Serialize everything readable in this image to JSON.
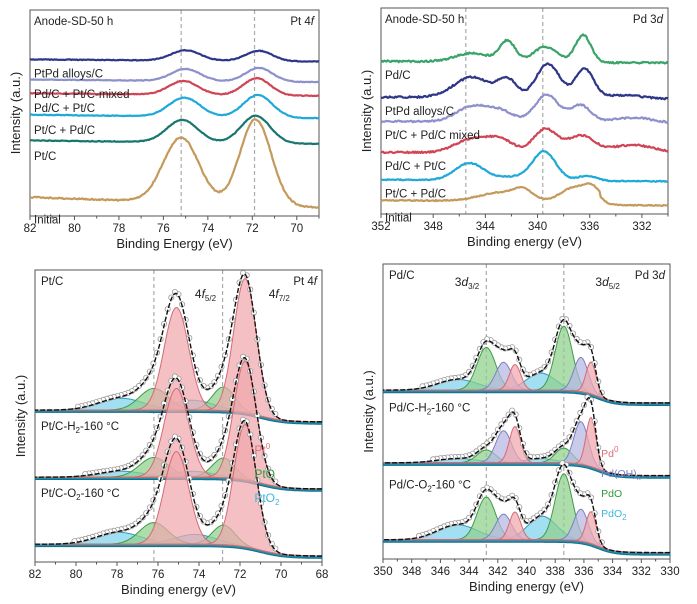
{
  "chart_data": [
    {
      "id": "a",
      "type": "line",
      "title": "",
      "corner_left_label": "Anode-SD-50 h",
      "corner_right_label": {
        "main": "Pt 4",
        "italic": "f"
      },
      "xlabel": "Binding Energy (eV)",
      "ylabel": "Intensity (a.u.)",
      "xlim": [
        82,
        69
      ],
      "xticks": [
        82,
        80,
        78,
        76,
        74,
        72,
        70
      ],
      "ref_lines": [
        75.2,
        71.9
      ],
      "series": [
        {
          "name": "Initial",
          "color": "#c49a5c",
          "peaks": [
            [
              75.2,
              0.38,
              0.8
            ],
            [
              71.85,
              0.5,
              0.7
            ]
          ],
          "baseline": 0.0,
          "slope": 0.06,
          "noise": 0.004
        },
        {
          "name": "Pt/C",
          "color": "#17766f",
          "peaks": [
            [
              75.15,
              0.13,
              0.7
            ],
            [
              71.85,
              0.16,
              0.65
            ]
          ],
          "baseline": 0.37,
          "slope": 0.02,
          "noise": 0.002
        },
        {
          "name": "Pt/C + Pd/C",
          "color": "#1ea9d8",
          "peaks": [
            [
              75.05,
              0.11,
              0.7
            ],
            [
              71.75,
              0.13,
              0.65
            ]
          ],
          "baseline": 0.52,
          "slope": 0.02,
          "noise": 0.002
        },
        {
          "name": "Pd/C + Pt/C",
          "color": "#cf4556",
          "peaks": [
            [
              75.1,
              0.08,
              0.65
            ],
            [
              71.8,
              0.1,
              0.6
            ]
          ],
          "baseline": 0.65,
          "slope": 0.015,
          "noise": 0.002
        },
        {
          "name": "Pd/C + Pt/C-mixed",
          "color": "#8e90cc",
          "peaks": [
            [
              75.0,
              0.07,
              0.65
            ],
            [
              71.7,
              0.08,
              0.6
            ]
          ],
          "baseline": 0.73,
          "slope": 0.015,
          "noise": 0.002
        },
        {
          "name": "PtPd alloys/C",
          "color": "#2d3687",
          "peaks": [
            [
              75.0,
              0.06,
              0.65
            ],
            [
              71.7,
              0.06,
              0.6
            ]
          ],
          "baseline": 0.85,
          "slope": 0.012,
          "noise": 0.002
        }
      ],
      "ylim": [
        -0.05,
        1.15
      ]
    },
    {
      "id": "b",
      "type": "line",
      "corner_left_label": "Anode-SD-50 h",
      "corner_right_label": {
        "main": "Pd 3",
        "italic": "d"
      },
      "xlabel": "Binding energy (eV)",
      "ylabel": "Intensity (a.u.)",
      "xlim": [
        352,
        330
      ],
      "xticks": [
        352,
        348,
        344,
        340,
        336,
        332
      ],
      "ref_lines": [
        345.5,
        339.6
      ],
      "series": [
        {
          "name": "Initial",
          "color": "#c49a5c",
          "peaks": [
            [
              342.8,
              0.05,
              1.6
            ],
            [
              341.1,
              0.05,
              0.7
            ],
            [
              337.2,
              0.08,
              1.0
            ],
            [
              335.8,
              0.07,
              0.6
            ]
          ],
          "baseline": 0.0,
          "slope": 0.01,
          "noise": 0.003,
          "step": [
            335.2,
            0.02
          ]
        },
        {
          "name": "Pt/C + Pd/C",
          "color": "#1ea9d8",
          "peaks": [
            [
              345.2,
              0.1,
              1.1
            ],
            [
              339.5,
              0.17,
              0.9
            ],
            [
              336.2,
              0.03,
              0.7
            ],
            [
              342.0,
              0.02,
              1.0
            ]
          ],
          "baseline": 0.14,
          "slope": 0.01,
          "noise": 0.003
        },
        {
          "name": "Pd/C + Pt/C",
          "color": "#cf4556",
          "peaks": [
            [
              345.0,
              0.08,
              1.3
            ],
            [
              342.8,
              0.07,
              1.0
            ],
            [
              339.4,
              0.14,
              0.9
            ],
            [
              336.7,
              0.1,
              1.0
            ],
            [
              332.7,
              0.05,
              1.8
            ]
          ],
          "baseline": 0.3,
          "slope": 0.01,
          "noise": 0.005
        },
        {
          "name": "Pt/C + Pd/C mixed",
          "color": "#8e90cc",
          "peaks": [
            [
              345.0,
              0.09,
              1.2
            ],
            [
              342.8,
              0.06,
              1.0
            ],
            [
              339.3,
              0.16,
              0.9
            ],
            [
              336.7,
              0.1,
              0.8
            ],
            [
              332.7,
              0.03,
              1.5
            ]
          ],
          "baseline": 0.48,
          "slope": 0.01,
          "noise": 0.005
        },
        {
          "name": "PtPd alloys/C",
          "color": "#2d3687",
          "peaks": [
            [
              345.0,
              0.12,
              1.4
            ],
            [
              342.3,
              0.1,
              0.7
            ],
            [
              339.2,
              0.2,
              0.9
            ],
            [
              336.4,
              0.17,
              0.7
            ],
            [
              333.5,
              0.02,
              1.5
            ]
          ],
          "baseline": 0.62,
          "slope": 0.012,
          "noise": 0.005
        },
        {
          "name": "Pd/C",
          "color": "#3aa36a",
          "peaks": [
            [
              345.0,
              0.05,
              1.3
            ],
            [
              342.3,
              0.12,
              0.6
            ],
            [
              339.4,
              0.09,
              0.9
            ],
            [
              336.5,
              0.16,
              0.6
            ]
          ],
          "baseline": 0.83,
          "slope": 0.01,
          "noise": 0.005
        }
      ],
      "ylim": [
        -0.05,
        1.15
      ]
    },
    {
      "id": "c",
      "type": "area",
      "corner_left_labels": [
        "Pt/C",
        "Pt/C-H2-160 °C",
        "Pt/C-O2-160 °C"
      ],
      "corner_right_label": {
        "main": "Pt 4",
        "italic": "f"
      },
      "peak_labels": [
        {
          "base": "4f",
          "sub": "5/2"
        },
        {
          "base": "4f",
          "sub": "7/2"
        }
      ],
      "xlabel": "Binding energy (eV)",
      "ylabel": "Intensity (a.u.)",
      "xlim": [
        82,
        68
      ],
      "xticks": [
        82,
        80,
        78,
        76,
        74,
        72,
        70,
        68
      ],
      "ref_lines": [
        76.2,
        72.85
      ],
      "legend": [
        {
          "label": "Pt",
          "sup": "0",
          "color": "#d9707a"
        },
        {
          "label": "PtO",
          "sup": "",
          "color": "#2f9a3a"
        },
        {
          "label": "PtO",
          "sub": "2",
          "color": "#3cb6dc"
        }
      ],
      "components": {
        "Pt0": "#f0a8ad",
        "PtO": "#8fd08c",
        "PtO2": "#7fd3ee",
        "sat": "#2aa7c8"
      },
      "spectra": [
        {
          "name": "Pt/C",
          "offset": 0.68,
          "Pt0": [
            [
              75.1,
              0.52,
              0.6
            ],
            [
              71.75,
              0.68,
              0.55
            ]
          ],
          "PtO": [
            [
              76.2,
              0.11,
              0.7
            ],
            [
              72.8,
              0.12,
              0.55
            ]
          ],
          "PtO2": [
            [
              77.8,
              0.06,
              1.1
            ],
            [
              74.3,
              0.05,
              1.0
            ]
          ]
        },
        {
          "name": "Pt/C-H2-160 °C",
          "offset": 0.34,
          "Pt0": [
            [
              75.1,
              0.45,
              0.6
            ],
            [
              71.75,
              0.6,
              0.55
            ]
          ],
          "PtO": [
            [
              76.2,
              0.1,
              0.7
            ],
            [
              72.8,
              0.1,
              0.55
            ]
          ],
          "PtO2": [
            [
              77.8,
              0.03,
              1.1
            ],
            [
              74.3,
              0.03,
              1.0
            ]
          ]
        },
        {
          "name": "Pt/C-O2-160 °C",
          "offset": 0.0,
          "Pt0": [
            [
              75.1,
              0.47,
              0.6
            ],
            [
              71.75,
              0.62,
              0.55
            ]
          ],
          "PtO": [
            [
              76.2,
              0.11,
              0.7
            ],
            [
              72.8,
              0.1,
              0.55
            ]
          ],
          "PtO2": [
            [
              77.9,
              0.06,
              1.1
            ],
            [
              74.2,
              0.05,
              1.0
            ]
          ]
        }
      ],
      "ylim": [
        -0.03,
        1.45
      ]
    },
    {
      "id": "d",
      "type": "area",
      "corner_left_labels": [
        "Pd/C",
        "Pd/C-H2-160 °C",
        "Pd/C-O2-160 °C"
      ],
      "corner_right_label": {
        "main": "Pd 3",
        "italic": "d"
      },
      "peak_labels": [
        {
          "base": "3d",
          "sub": "3/2"
        },
        {
          "base": "3d",
          "sub": "5/2"
        }
      ],
      "xlabel": "Binding energy (eV)",
      "ylabel": "Intensity (a.u.)",
      "xlim": [
        350,
        330
      ],
      "xticks": [
        350,
        348,
        346,
        344,
        342,
        340,
        338,
        336,
        334,
        332,
        330
      ],
      "ref_lines": [
        342.8,
        337.4
      ],
      "legend": [
        {
          "label": "Pd",
          "sup": "0",
          "color": "#d9707a"
        },
        {
          "label": "Pd(OH)",
          "sub": "x",
          "color": "#7b7fc4"
        },
        {
          "label": "PdO",
          "sup": "",
          "color": "#2f9a3a"
        },
        {
          "label": "PdO",
          "sub": "2",
          "color": "#3cb6dc"
        }
      ],
      "components": {
        "Pd0": "#f0a8ad",
        "PdOHx": "#b5b7e3",
        "PdO": "#8fd08c",
        "PdO2": "#7fd3ee",
        "sat": "#2aa7c8"
      },
      "spectra": [
        {
          "name": "Pd/C",
          "offset": 0.7,
          "Pd0": [
            [
              340.8,
              0.12,
              0.4
            ],
            [
              335.5,
              0.15,
              0.35
            ]
          ],
          "PdOHx": [
            [
              341.6,
              0.13,
              0.55
            ],
            [
              336.2,
              0.16,
              0.5
            ]
          ],
          "PdO": [
            [
              342.8,
              0.2,
              0.65
            ],
            [
              337.4,
              0.3,
              0.6
            ]
          ],
          "PdO2": [
            [
              344.8,
              0.05,
              1.4
            ],
            [
              339.0,
              0.08,
              1.0
            ]
          ]
        },
        {
          "name": "Pd/C-H2-160 °C",
          "offset": 0.36,
          "Pd0": [
            [
              340.8,
              0.17,
              0.4
            ],
            [
              335.5,
              0.23,
              0.35
            ]
          ],
          "PdOHx": [
            [
              341.6,
              0.15,
              0.55
            ],
            [
              336.2,
              0.2,
              0.5
            ]
          ],
          "PdO": [
            [
              342.8,
              0.06,
              0.65
            ],
            [
              337.4,
              0.07,
              0.6
            ]
          ],
          "PdO2": [
            [
              344.8,
              0.02,
              1.4
            ],
            [
              339.0,
              0.02,
              1.0
            ]
          ]
        },
        {
          "name": "Pd/C-O2-160 °C",
          "offset": 0.0,
          "Pd0": [
            [
              340.8,
              0.13,
              0.4
            ],
            [
              335.5,
              0.15,
              0.35
            ]
          ],
          "PdOHx": [
            [
              341.6,
              0.12,
              0.55
            ],
            [
              336.2,
              0.15,
              0.5
            ]
          ],
          "PdO": [
            [
              342.8,
              0.2,
              0.65
            ],
            [
              337.4,
              0.31,
              0.6
            ]
          ],
          "PdO2": [
            [
              344.8,
              0.07,
              1.4
            ],
            [
              338.9,
              0.11,
              1.0
            ]
          ]
        }
      ],
      "ylim": [
        -0.03,
        1.35
      ]
    }
  ]
}
